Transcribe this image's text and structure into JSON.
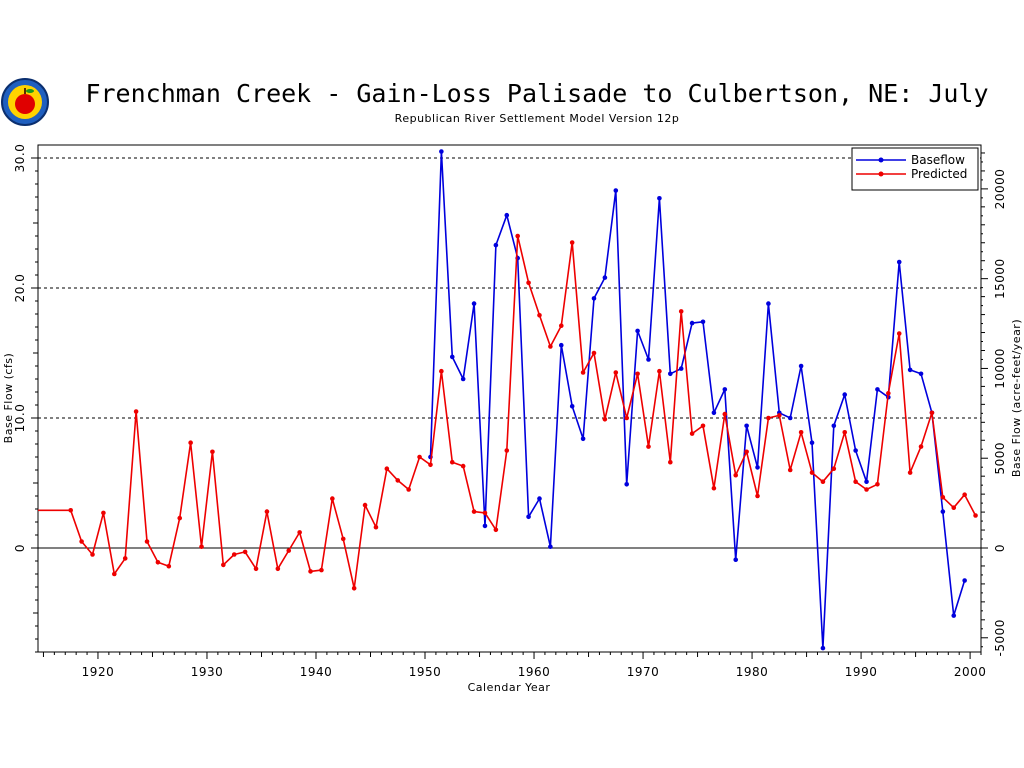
{
  "chart_data": {
    "type": "line",
    "title": "Frenchman Creek - Gain-Loss Palisade to Culbertson, NE: July",
    "subtitle": "Republican River Settlement Model Version 12p",
    "xlabel": "Calendar Year",
    "ylabel_left": "Base Flow (cfs)",
    "ylabel_right": "Base Flow (acre-feet/year)",
    "xlim": [
      1914.5,
      2001
    ],
    "ylim": [
      -8,
      31
    ],
    "x_ticks": [
      "1920",
      "1930",
      "1940",
      "1950",
      "1960",
      "1970",
      "1980",
      "1990",
      "2000"
    ],
    "y_ticks_left": [
      "0",
      "10.0",
      "20.0",
      "30.0"
    ],
    "y_ticks_right": [
      "-5000",
      "0",
      "5000",
      "10000",
      "15000",
      "20000"
    ],
    "dashed_gridlines_y": [
      10,
      20,
      30
    ],
    "legend_position": "top-right",
    "series": [
      {
        "name": "Baseflow",
        "color": "#0000dd",
        "points": [
          [
            1950.5,
            7.0
          ],
          [
            1951.5,
            30.5
          ],
          [
            1952.5,
            14.7
          ],
          [
            1953.5,
            13.0
          ],
          [
            1954.5,
            18.8
          ],
          [
            1955.5,
            1.7
          ],
          [
            1956.5,
            23.3
          ],
          [
            1957.5,
            25.6
          ],
          [
            1958.5,
            22.3
          ],
          [
            1959.5,
            2.4
          ],
          [
            1960.5,
            3.8
          ],
          [
            1961.5,
            0.1
          ],
          [
            1962.5,
            15.6
          ],
          [
            1963.5,
            10.9
          ],
          [
            1964.5,
            8.4
          ],
          [
            1965.5,
            19.2
          ],
          [
            1966.5,
            20.8
          ],
          [
            1967.5,
            27.5
          ],
          [
            1968.5,
            4.9
          ],
          [
            1969.5,
            16.7
          ],
          [
            1970.5,
            14.5
          ],
          [
            1971.5,
            26.9
          ],
          [
            1972.5,
            13.4
          ],
          [
            1973.5,
            13.8
          ],
          [
            1974.5,
            17.3
          ],
          [
            1975.5,
            17.4
          ],
          [
            1976.5,
            10.4
          ],
          [
            1977.5,
            12.2
          ],
          [
            1978.5,
            -0.9
          ],
          [
            1979.5,
            9.4
          ],
          [
            1980.5,
            6.2
          ],
          [
            1981.5,
            18.8
          ],
          [
            1982.5,
            10.4
          ],
          [
            1983.5,
            10.0
          ],
          [
            1984.5,
            14.0
          ],
          [
            1985.5,
            8.1
          ],
          [
            1986.5,
            -7.7
          ],
          [
            1987.5,
            9.4
          ],
          [
            1988.5,
            11.8
          ],
          [
            1989.5,
            7.5
          ],
          [
            1990.5,
            5.1
          ],
          [
            1991.5,
            12.2
          ],
          [
            1992.5,
            11.6
          ],
          [
            1993.5,
            22.0
          ],
          [
            1994.5,
            13.7
          ],
          [
            1995.5,
            13.4
          ],
          [
            1996.5,
            10.4
          ],
          [
            1997.5,
            2.8
          ],
          [
            1998.5,
            -5.2
          ],
          [
            1999.5,
            -2.5
          ]
        ]
      },
      {
        "name": "Predicted",
        "color": "#ee0000",
        "points": [
          [
            1914.5,
            2.9
          ],
          [
            1917.5,
            2.9
          ],
          [
            1918.5,
            0.5
          ],
          [
            1919.5,
            -0.5
          ],
          [
            1920.5,
            2.7
          ],
          [
            1921.5,
            -2.0
          ],
          [
            1922.5,
            -0.8
          ],
          [
            1923.5,
            10.5
          ],
          [
            1924.5,
            0.5
          ],
          [
            1925.5,
            -1.1
          ],
          [
            1926.5,
            -1.4
          ],
          [
            1927.5,
            2.3
          ],
          [
            1928.5,
            8.1
          ],
          [
            1929.5,
            0.1
          ],
          [
            1930.5,
            7.4
          ],
          [
            1931.5,
            -1.3
          ],
          [
            1932.5,
            -0.5
          ],
          [
            1933.5,
            -0.3
          ],
          [
            1934.5,
            -1.6
          ],
          [
            1935.5,
            2.8
          ],
          [
            1936.5,
            -1.6
          ],
          [
            1937.5,
            -0.2
          ],
          [
            1938.5,
            1.2
          ],
          [
            1939.5,
            -1.8
          ],
          [
            1940.5,
            -1.7
          ],
          [
            1941.5,
            3.8
          ],
          [
            1942.5,
            0.7
          ],
          [
            1943.5,
            -3.1
          ],
          [
            1944.5,
            3.3
          ],
          [
            1945.5,
            1.6
          ],
          [
            1946.5,
            6.1
          ],
          [
            1947.5,
            5.2
          ],
          [
            1948.5,
            4.5
          ],
          [
            1949.5,
            7.0
          ],
          [
            1950.5,
            6.4
          ],
          [
            1951.5,
            13.6
          ],
          [
            1952.5,
            6.6
          ],
          [
            1953.5,
            6.3
          ],
          [
            1954.5,
            2.8
          ],
          [
            1955.5,
            2.7
          ],
          [
            1956.5,
            1.4
          ],
          [
            1957.5,
            7.5
          ],
          [
            1958.5,
            24.0
          ],
          [
            1959.5,
            20.4
          ],
          [
            1960.5,
            17.9
          ],
          [
            1961.5,
            15.5
          ],
          [
            1962.5,
            17.1
          ],
          [
            1963.5,
            23.5
          ],
          [
            1964.5,
            13.5
          ],
          [
            1965.5,
            15.0
          ],
          [
            1966.5,
            9.9
          ],
          [
            1967.5,
            13.5
          ],
          [
            1968.5,
            10.0
          ],
          [
            1969.5,
            13.4
          ],
          [
            1970.5,
            7.8
          ],
          [
            1971.5,
            13.6
          ],
          [
            1972.5,
            6.6
          ],
          [
            1973.5,
            18.2
          ],
          [
            1974.5,
            8.8
          ],
          [
            1975.5,
            9.4
          ],
          [
            1976.5,
            4.6
          ],
          [
            1977.5,
            10.3
          ],
          [
            1978.5,
            5.6
          ],
          [
            1979.5,
            7.4
          ],
          [
            1980.5,
            4.0
          ],
          [
            1981.5,
            10.0
          ],
          [
            1982.5,
            10.2
          ],
          [
            1983.5,
            6.0
          ],
          [
            1984.5,
            8.9
          ],
          [
            1985.5,
            5.8
          ],
          [
            1986.5,
            5.1
          ],
          [
            1987.5,
            6.1
          ],
          [
            1988.5,
            8.9
          ],
          [
            1989.5,
            5.1
          ],
          [
            1990.5,
            4.5
          ],
          [
            1991.5,
            4.9
          ],
          [
            1992.5,
            11.9
          ],
          [
            1993.5,
            16.5
          ],
          [
            1994.5,
            5.8
          ],
          [
            1995.5,
            7.8
          ],
          [
            1996.5,
            10.4
          ],
          [
            1997.5,
            3.9
          ],
          [
            1998.5,
            3.1
          ],
          [
            1999.5,
            4.1
          ],
          [
            2000.5,
            2.5
          ]
        ]
      }
    ]
  }
}
